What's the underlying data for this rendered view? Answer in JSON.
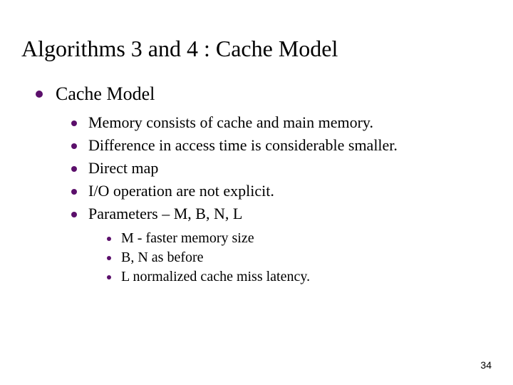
{
  "title": "Algorithms 3 and 4 : Cache Model",
  "bullet_color": "#5b0f6b",
  "bg_color": "#ffffff",
  "text_color": "#000000",
  "heading": "Cache Model",
  "bullets_l2": [
    "Memory consists of cache and main memory.",
    "Difference in access time is considerable smaller.",
    "Direct map",
    "I/O operation are not explicit.",
    "Parameters – M, B, N, L"
  ],
  "bullets_l3": [
    "M - faster memory size",
    "B, N as before",
    "L normalized cache miss latency."
  ],
  "page_number": "34"
}
